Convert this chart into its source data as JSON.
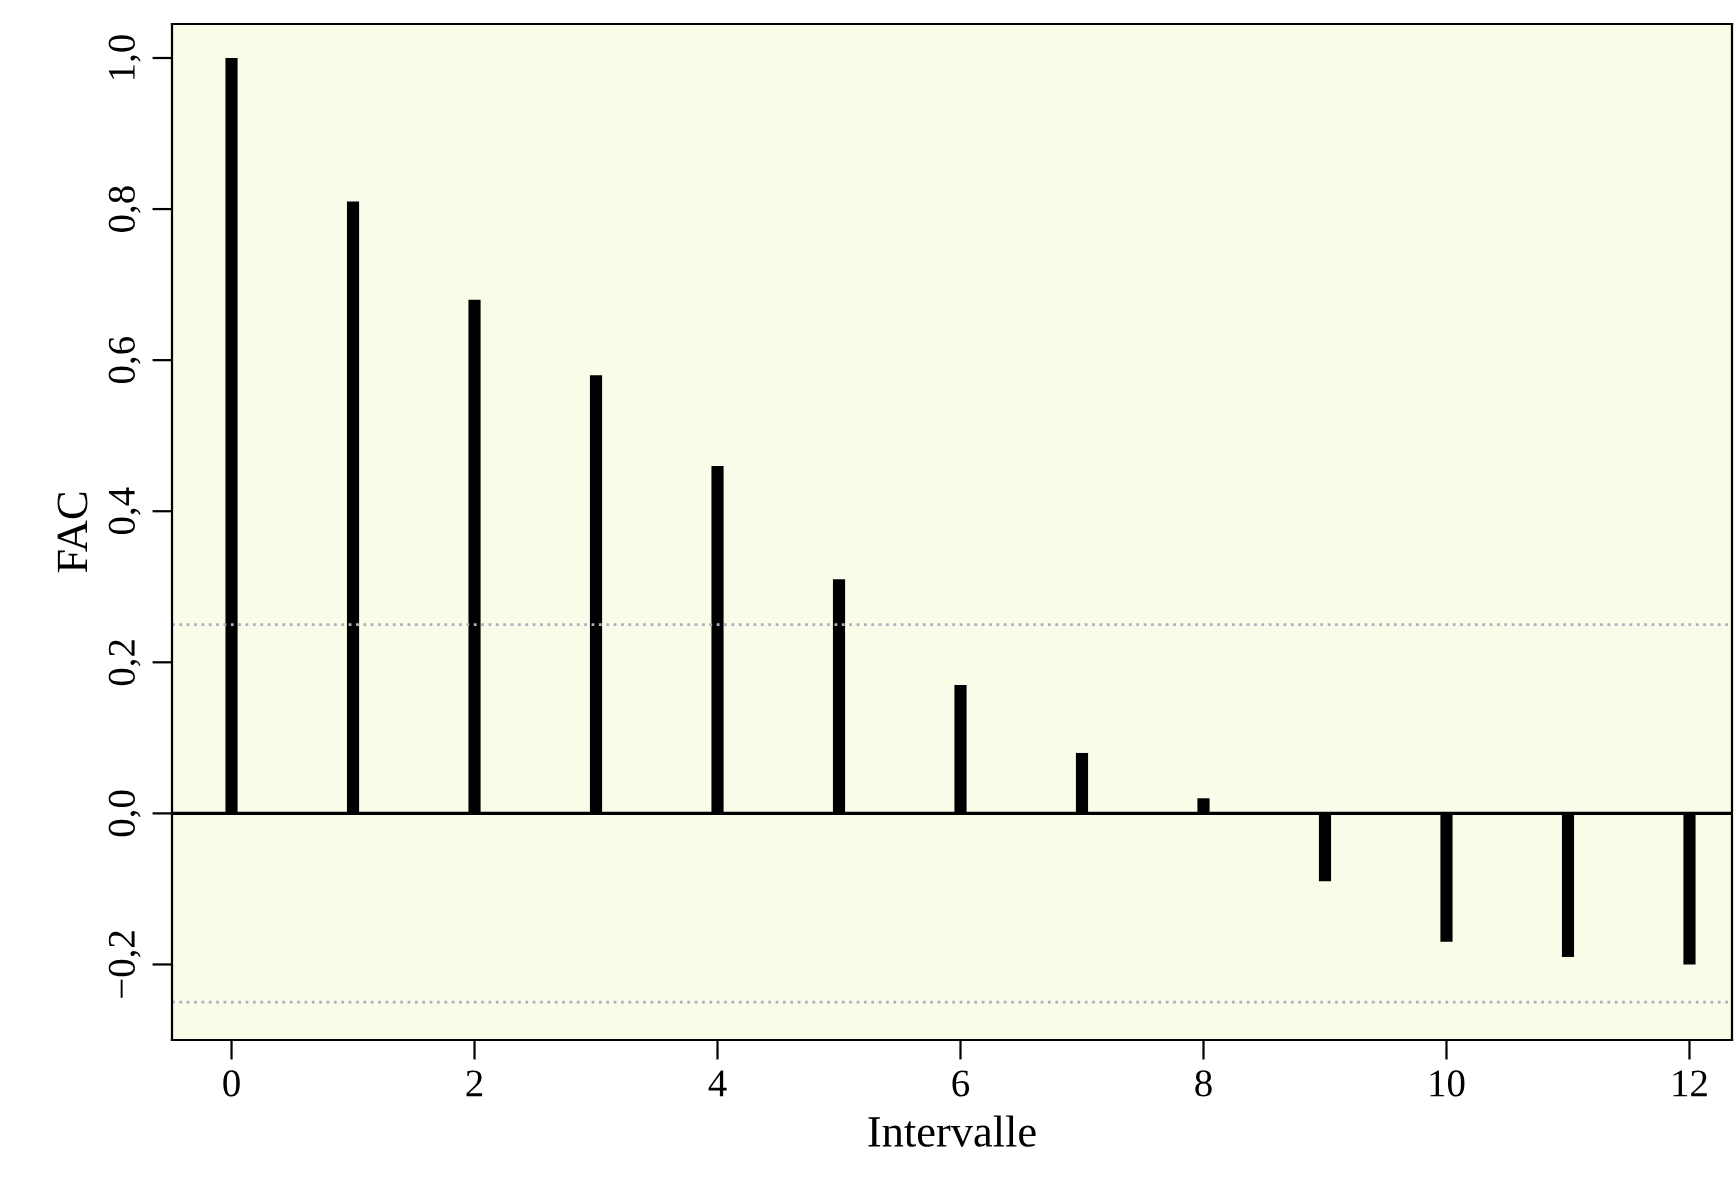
{
  "chart_data": {
    "type": "bar",
    "xlabel": "Intervalle",
    "ylabel": "FAC",
    "x": [
      0,
      1,
      2,
      3,
      4,
      5,
      6,
      7,
      8,
      9,
      10,
      11,
      12
    ],
    "values": [
      1.0,
      0.81,
      0.68,
      0.58,
      0.46,
      0.31,
      0.17,
      0.08,
      0.02,
      -0.09,
      -0.17,
      -0.19,
      -0.2
    ],
    "color": "#000000",
    "xlim": [
      -0.49,
      12.35
    ],
    "xticks": [
      0,
      2,
      4,
      6,
      8,
      10,
      12
    ],
    "ylim": [
      -0.3,
      1.045
    ],
    "yticks": [
      {
        "value": -0.2,
        "label": "−0,2"
      },
      {
        "value": 0,
        "label": "0,0"
      },
      {
        "value": 0.2,
        "label": "0,2"
      },
      {
        "value": 0.4,
        "label": "0,4"
      },
      {
        "value": 0.6,
        "label": "0,6"
      },
      {
        "value": 0.8,
        "label": "0,8"
      },
      {
        "value": 1.0,
        "label": "1,0"
      }
    ],
    "ref_lines": [
      {
        "axis": "y",
        "value": 0,
        "color": "#000000",
        "line_style": "solid"
      },
      {
        "axis": "y",
        "value": 0.25,
        "color": "#a9b4bd",
        "line_style": "dotted"
      },
      {
        "axis": "y",
        "value": -0.25,
        "color": "#a9b4bd",
        "line_style": "dotted"
      }
    ],
    "grid": false,
    "legend": false
  }
}
